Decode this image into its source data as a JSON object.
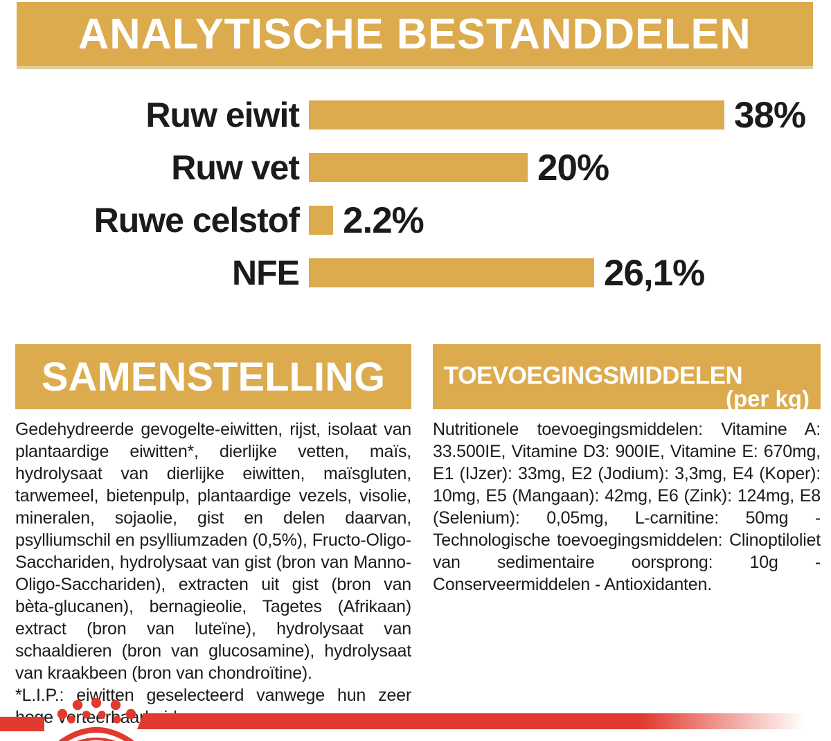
{
  "colors": {
    "gold": "#dcab4e",
    "red": "#e13a2e",
    "text": "#1d1b1a",
    "banner_text": "#ffffff"
  },
  "header": {
    "title": "ANALYTISCHE BESTANDDELEN"
  },
  "chart_data": {
    "type": "bar",
    "orientation": "horizontal",
    "title": "ANALYTISCHE BESTANDDELEN",
    "categories": [
      "Ruw eiwit",
      "Ruw vet",
      "Ruwe celstof",
      "NFE"
    ],
    "values": [
      38,
      20,
      2.2,
      26.1
    ],
    "value_labels": [
      "38%",
      "20%",
      "2.2%",
      "26,1%"
    ],
    "bar_color": "#dcab4e",
    "xlabel": "",
    "ylabel": "",
    "xlim": [
      0,
      40
    ],
    "grid": false,
    "legend": false
  },
  "composition": {
    "title": "SAMENSTELLING",
    "body": "Gedehydreerde gevogelte-eiwitten, rijst, isolaat van plantaardige eiwitten*, dierlijke vetten, maïs, hydrolysaat van dierlijke eiwitten, maïsgluten, tarwemeel, bietenpulp, plantaardige vezels, visolie, mineralen, sojaolie, gist en delen daarvan, psylliumschil en psylliumzaden (0,5%), Fructo-Oligo-Sacchariden, hydrolysaat van gist (bron van Manno-Oligo-Sacchariden), extracten uit gist (bron van bèta-glucanen), bernagieolie, Tagetes (Afrikaan) extract (bron van luteïne), hydrolysaat van schaaldieren (bron van glucosamine), hydrolysaat van kraakbeen (bron van chondroïtine).",
    "footnote": "*L.I.P.: eiwitten geselecteerd vanwege hun zeer hoge verteerbaarheid."
  },
  "additives": {
    "title": "TOEVOEGINGSMIDDELEN",
    "subtitle": "(per kg)",
    "body": "Nutritionele toevoegingsmiddelen: Vitamine A: 33.500IE, Vitamine D3: 900IE, Vitamine E: 670mg, E1 (IJzer): 33mg, E2 (Jodium): 3,3mg, E4 (Koper): 10mg, E5 (Mangaan): 42mg, E6 (Zink): 124mg, E8 (Selenium): 0,05mg, L-carnitine: 50mg - Technologische toevoegingsmiddelen: Clinoptiloliet van sedimentaire oorsprong: 10g - Conserveermiddelen - Antioxidanten."
  },
  "footer": {
    "logo": "royal-canin-crown"
  }
}
